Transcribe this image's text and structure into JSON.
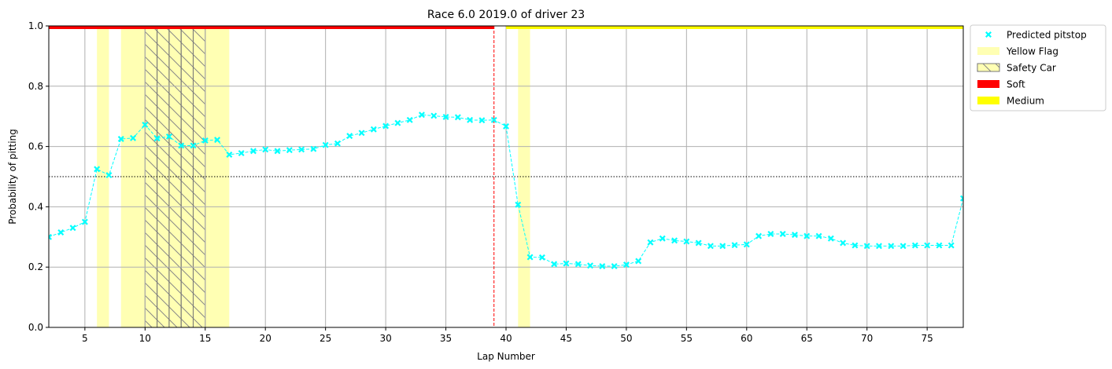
{
  "chart_data": {
    "type": "line",
    "title": "Race 6.0 2019.0 of driver 23",
    "xlabel": "Lap Number",
    "ylabel": "Probability of pitting",
    "xlim": [
      2,
      78
    ],
    "ylim": [
      0,
      1
    ],
    "xticks": [
      5,
      10,
      15,
      20,
      25,
      30,
      35,
      40,
      45,
      50,
      55,
      60,
      65,
      70,
      75
    ],
    "yticks": [
      0.0,
      0.2,
      0.4,
      0.6,
      0.8,
      1.0
    ],
    "grid": true,
    "legend_position": "outside-top-right",
    "threshold": 0.5,
    "actual_pitstop_lap": 39,
    "series": [
      {
        "name": "Predicted pitstop",
        "color": "#00ffff",
        "marker": "x",
        "x": [
          2,
          3,
          4,
          5,
          6,
          7,
          8,
          9,
          10,
          11,
          12,
          13,
          14,
          15,
          16,
          17,
          18,
          19,
          20,
          21,
          22,
          23,
          24,
          25,
          26,
          27,
          28,
          29,
          30,
          31,
          32,
          33,
          34,
          35,
          36,
          37,
          38,
          39,
          40,
          41,
          42,
          43,
          44,
          45,
          46,
          47,
          48,
          49,
          50,
          51,
          52,
          53,
          54,
          55,
          56,
          57,
          58,
          59,
          60,
          61,
          62,
          63,
          64,
          65,
          66,
          67,
          68,
          69,
          70,
          71,
          72,
          73,
          74,
          75,
          76,
          77,
          78
        ],
        "y": [
          0.3,
          0.315,
          0.33,
          0.35,
          0.525,
          0.505,
          0.625,
          0.628,
          0.672,
          0.627,
          0.633,
          0.603,
          0.603,
          0.62,
          0.622,
          0.573,
          0.578,
          0.585,
          0.59,
          0.585,
          0.588,
          0.59,
          0.592,
          0.605,
          0.61,
          0.635,
          0.645,
          0.657,
          0.668,
          0.678,
          0.688,
          0.705,
          0.702,
          0.698,
          0.697,
          0.688,
          0.687,
          0.688,
          0.667,
          0.407,
          0.233,
          0.232,
          0.21,
          0.212,
          0.21,
          0.205,
          0.203,
          0.203,
          0.208,
          0.22,
          0.282,
          0.295,
          0.288,
          0.285,
          0.28,
          0.27,
          0.27,
          0.273,
          0.275,
          0.303,
          0.31,
          0.31,
          0.307,
          0.303,
          0.303,
          0.295,
          0.28,
          0.272,
          0.27,
          0.27,
          0.27,
          0.27,
          0.272,
          0.272,
          0.272,
          0.272,
          0.428
        ]
      }
    ],
    "yellow_flags": [
      [
        6,
        7
      ],
      [
        8,
        17
      ],
      [
        41,
        42
      ]
    ],
    "safety_car_laps": [
      10,
      11,
      12,
      13,
      14
    ],
    "tyres": [
      {
        "compound": "Soft",
        "from": 2,
        "to": 39,
        "color": "#ff0000"
      },
      {
        "compound": "Medium",
        "from": 40,
        "to": 78,
        "color": "#ffff00"
      }
    ],
    "legend": [
      {
        "label": "Predicted pitstop",
        "kind": "marker",
        "color": "#00ffff"
      },
      {
        "label": "Yellow Flag",
        "kind": "patch",
        "color": "#ffffb3"
      },
      {
        "label": "Safety Car",
        "kind": "hatch",
        "color": "#ffffb3"
      },
      {
        "label": "Soft",
        "kind": "patch",
        "color": "#ff0000"
      },
      {
        "label": "Medium",
        "kind": "patch",
        "color": "#ffff00"
      }
    ]
  }
}
